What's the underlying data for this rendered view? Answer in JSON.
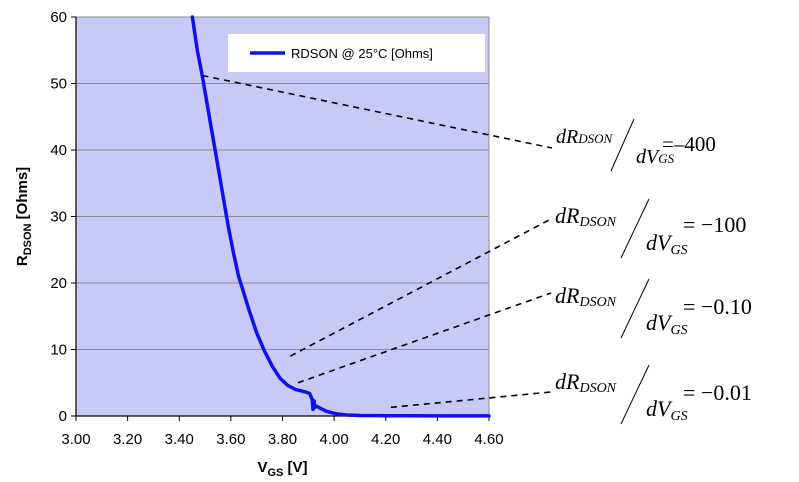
{
  "chart_data": {
    "type": "line",
    "colors": {
      "plot_area": "#c9c9f7",
      "series": "#1010ee",
      "gridline": "#8c8c8c",
      "annotation": "#000000"
    },
    "grid": true,
    "legend_position": "top-right",
    "xlabel": {
      "main": "V",
      "sub": "GS",
      "unit": " [V]"
    },
    "ylabel": {
      "main": "R",
      "sub": "DSON",
      "unit": " [Ohms]"
    },
    "xlim": [
      3.0,
      4.6
    ],
    "ylim": [
      0,
      60
    ],
    "x_ticks": [
      "3.00",
      "3.20",
      "3.40",
      "3.60",
      "3.80",
      "4.00",
      "4.20",
      "4.40",
      "4.60"
    ],
    "y_ticks": [
      "0",
      "10",
      "20",
      "30",
      "40",
      "50",
      "60"
    ],
    "series": [
      {
        "name": "RDSON @ 25°C [Ohms]",
        "x": [
          3.451,
          3.47,
          3.49,
          3.51,
          3.53,
          3.55,
          3.57,
          3.59,
          3.61,
          3.63,
          3.65,
          3.67,
          3.7,
          3.73,
          3.76,
          3.79,
          3.82,
          3.85,
          3.87,
          3.89,
          3.905,
          3.915,
          3.918,
          3.92,
          3.922,
          3.925,
          3.93,
          3.95,
          3.97,
          4.0,
          4.02,
          4.05,
          4.1,
          4.2,
          4.3,
          4.4,
          4.5,
          4.6
        ],
        "y": [
          60,
          55,
          51,
          46.5,
          42,
          37.5,
          33,
          28.5,
          24.5,
          21,
          18.5,
          16,
          12.5,
          9.8,
          7.5,
          5.7,
          4.6,
          4.0,
          3.8,
          3.6,
          3.4,
          2.5,
          1.0,
          1.6,
          2.3,
          1.3,
          1.5,
          1.1,
          0.7,
          0.4,
          0.25,
          0.15,
          0.08,
          0.04,
          0.03,
          0.02,
          0.02,
          0.02
        ]
      }
    ],
    "annotations": [
      {
        "num": "dR",
        "num_sub": "DSON",
        "den": "dV",
        "den_sub": "GS",
        "value": "=–400",
        "x": 3.49,
        "y": 51.2
      },
      {
        "num": "dR",
        "num_sub": "DSON",
        "den": "dV",
        "den_sub": "GS",
        "value": "= −100",
        "x": 3.83,
        "y": 9.0
      },
      {
        "num": "dR",
        "num_sub": "DSON",
        "den": "dV",
        "den_sub": "GS",
        "value": "= −0.10",
        "x": 3.86,
        "y": 5.0
      },
      {
        "num": "dR",
        "num_sub": "DSON",
        "den": "dV",
        "den_sub": "GS",
        "value": "= −0.01",
        "x": 4.22,
        "y": 1.3
      }
    ]
  }
}
